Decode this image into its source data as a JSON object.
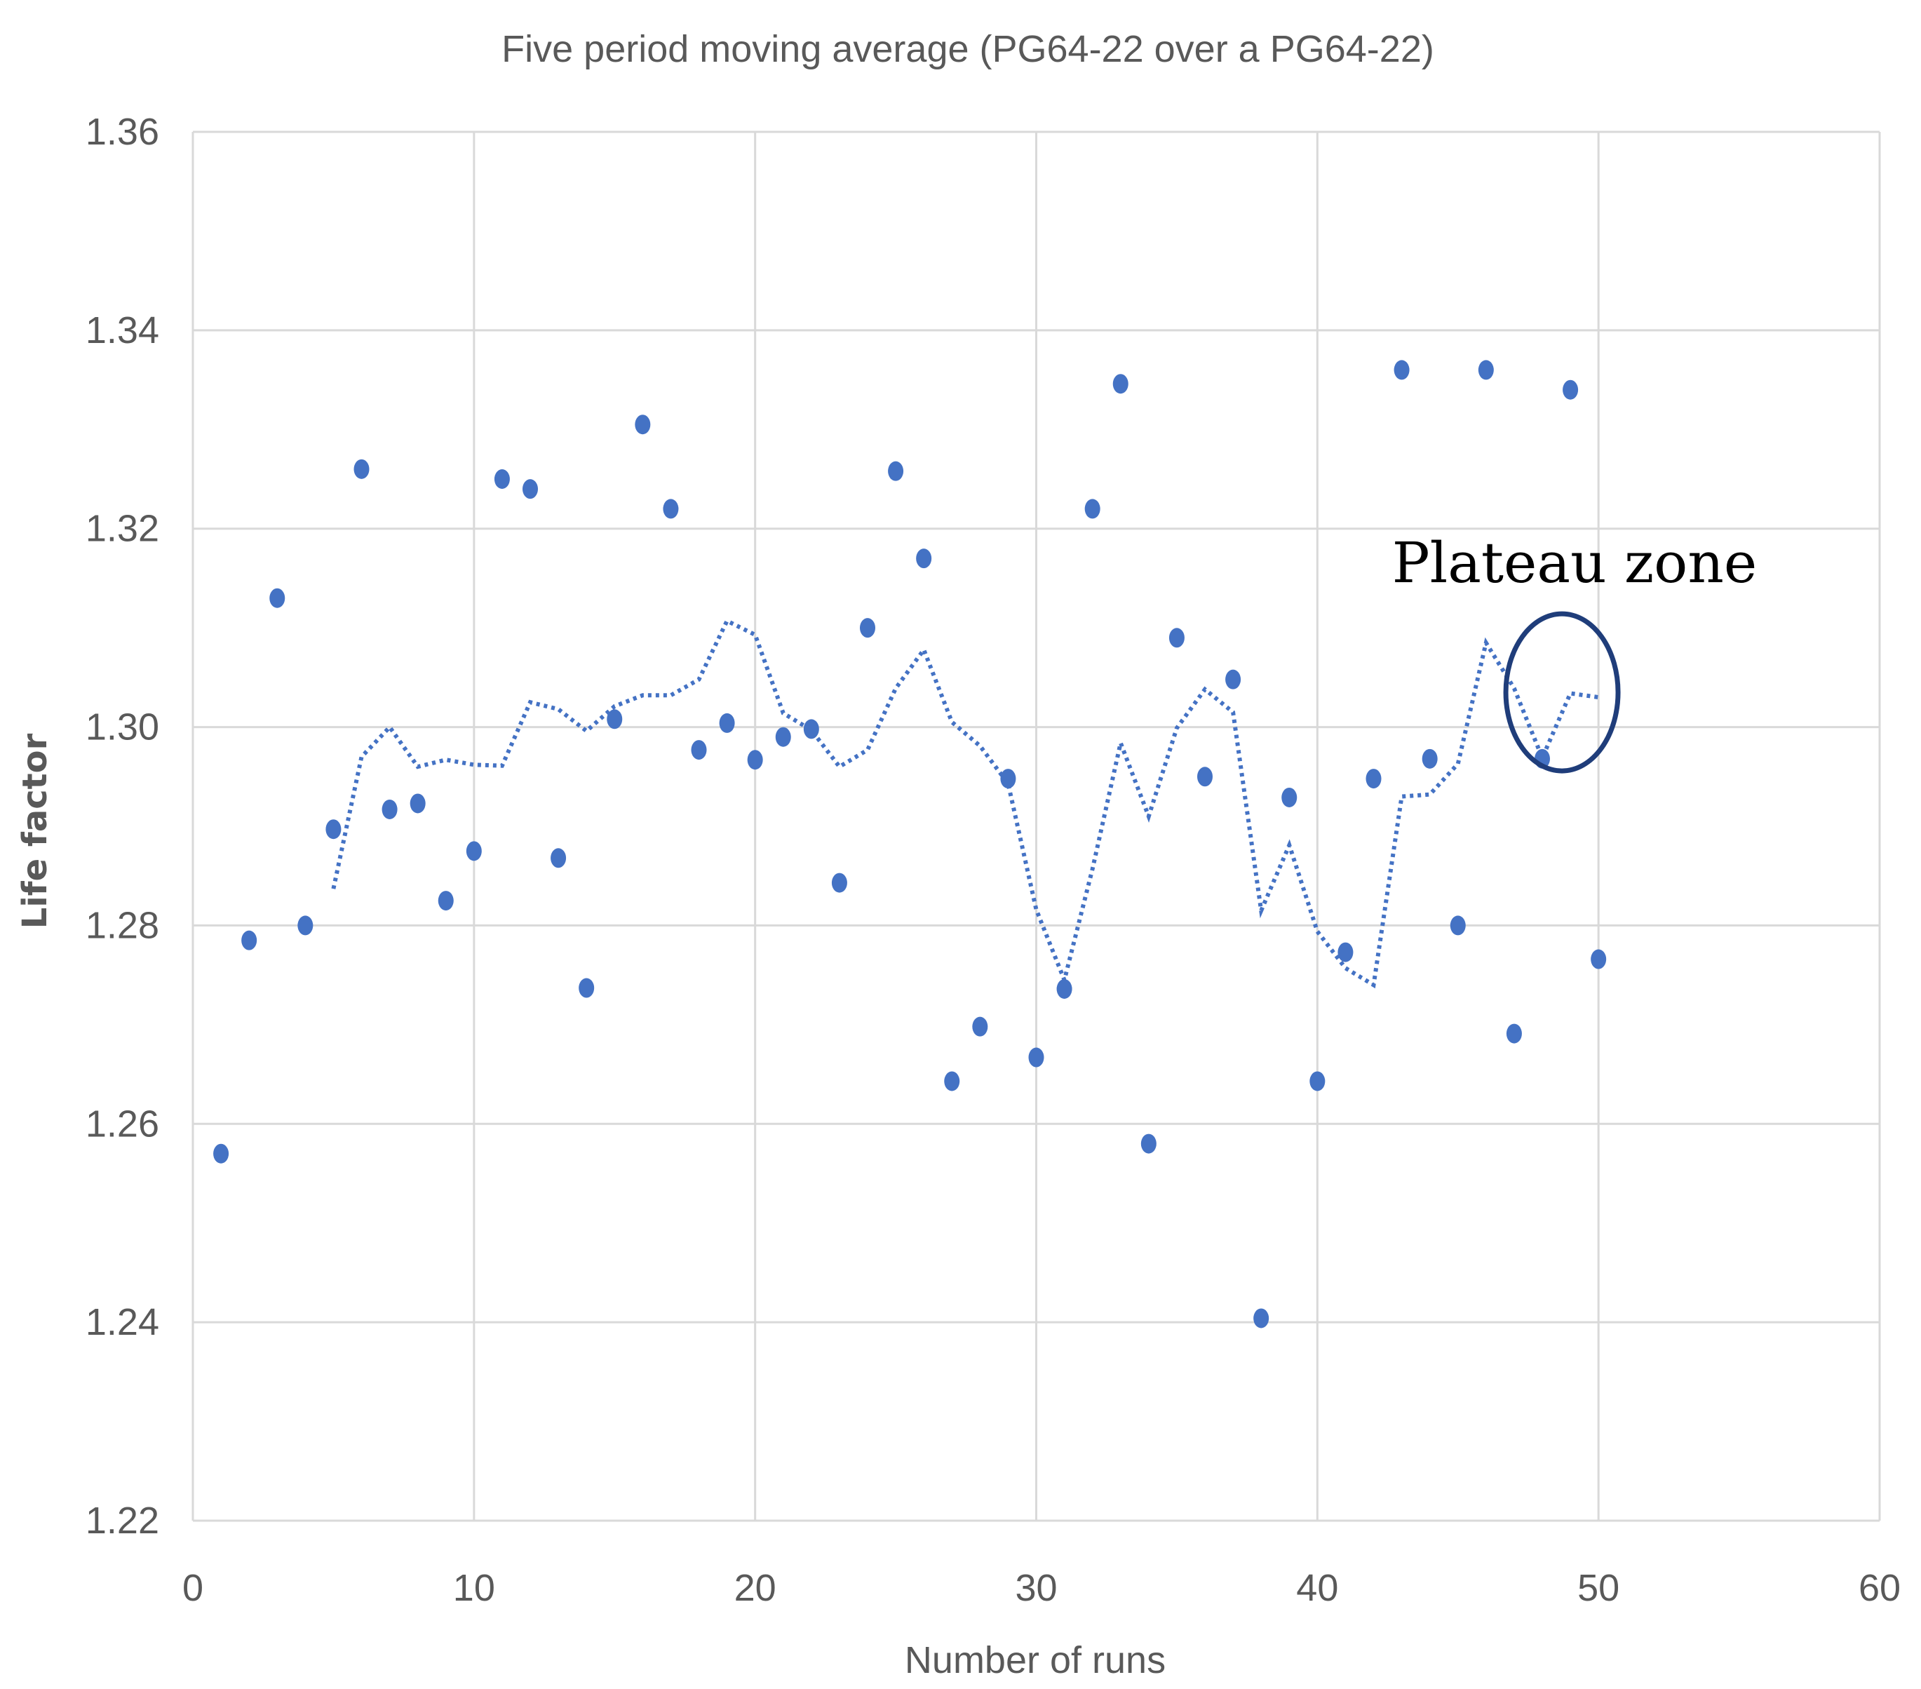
{
  "chart_data": {
    "type": "scatter",
    "title": "Five period moving average (PG64-22 over a PG64-22)",
    "xlabel": "Number of runs",
    "ylabel": "Life factor",
    "xlim": [
      0,
      60
    ],
    "ylim": [
      1.22,
      1.36
    ],
    "xticks": [
      0,
      10,
      20,
      30,
      40,
      50,
      60
    ],
    "yticks": [
      1.22,
      1.24,
      1.26,
      1.28,
      1.3,
      1.32,
      1.34,
      1.36
    ],
    "ytick_labels": [
      "1.22",
      "1.24",
      "1.26",
      "1.28",
      "1.30",
      "1.32",
      "1.34",
      "1.36"
    ],
    "grid": true,
    "series": [
      {
        "name": "Life factor",
        "style": "markers",
        "color": "#4472C4",
        "x": [
          1,
          2,
          3,
          4,
          5,
          6,
          7,
          8,
          9,
          10,
          11,
          12,
          13,
          14,
          15,
          16,
          17,
          18,
          19,
          20,
          21,
          22,
          23,
          24,
          25,
          26,
          27,
          28,
          29,
          30,
          31,
          32,
          33,
          34,
          35,
          36,
          37,
          38,
          39,
          40,
          41,
          42,
          43,
          44,
          45,
          46,
          47,
          48,
          49,
          50
        ],
        "y": [
          1.257,
          1.2785,
          1.313,
          1.28,
          1.2897,
          1.326,
          1.2917,
          1.2923,
          1.2825,
          1.2875,
          1.325,
          1.324,
          1.2868,
          1.2737,
          1.3008,
          1.3305,
          1.322,
          1.2977,
          1.3004,
          1.2967,
          1.299,
          1.2998,
          1.2843,
          1.31,
          1.3258,
          1.317,
          1.2643,
          1.2698,
          1.2948,
          1.2667,
          1.2736,
          1.322,
          1.3346,
          1.258,
          1.309,
          1.295,
          1.3048,
          1.2404,
          1.2929,
          1.2643,
          1.2773,
          1.2948,
          1.336,
          1.2968,
          1.28,
          1.336,
          1.2691,
          1.2968,
          1.334,
          1.2766
        ]
      },
      {
        "name": "5 per. Mov. Avg. (Life factor)",
        "style": "dotted-line",
        "color": "#4472C4",
        "x": [
          5,
          6,
          7,
          8,
          9,
          10,
          11,
          12,
          13,
          14,
          15,
          16,
          17,
          18,
          19,
          20,
          21,
          22,
          23,
          24,
          25,
          26,
          27,
          28,
          29,
          30,
          31,
          32,
          33,
          34,
          35,
          36,
          37,
          38,
          39,
          40,
          41,
          42,
          43,
          44,
          45,
          46,
          47,
          48,
          49,
          50
        ],
        "y": [
          1.2837,
          1.297,
          1.3,
          1.296,
          1.2967,
          1.2962,
          1.2961,
          1.3025,
          1.3018,
          1.2996,
          1.3021,
          1.3032,
          1.3032,
          1.3048,
          1.3107,
          1.3093,
          1.3014,
          1.2997,
          1.296,
          1.2977,
          1.3039,
          1.3078,
          1.3005,
          1.2981,
          1.2943,
          1.2816,
          1.2745,
          1.2857,
          1.2984,
          1.291,
          1.2999,
          1.3038,
          1.3015,
          1.2815,
          1.2881,
          1.2794,
          1.2757,
          1.274,
          1.293,
          1.2932,
          1.2963,
          1.3085,
          1.3039,
          1.2969,
          1.3034,
          1.303
        ]
      }
    ],
    "annotations": [
      {
        "text": "Plateau zone",
        "shape": "circle",
        "center": [
          48.7,
          1.3035
        ]
      }
    ]
  }
}
